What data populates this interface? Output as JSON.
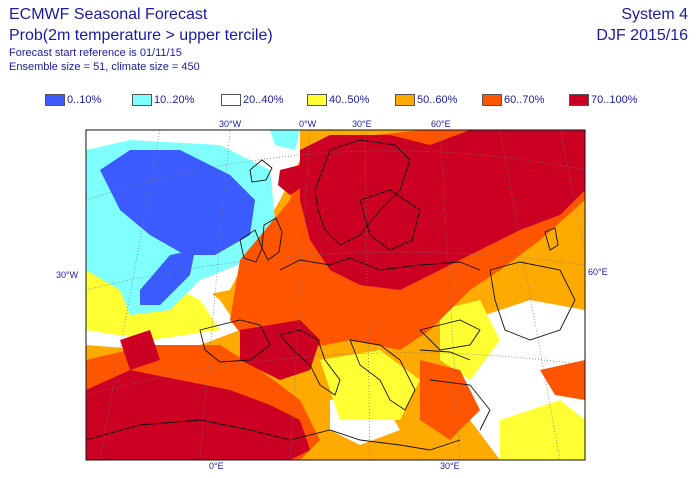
{
  "header": {
    "title": "ECMWF Seasonal Forecast",
    "subtitle": "Prob(2m temperature > upper tercile)",
    "start_ref": "Forecast start reference is 01/11/15",
    "ensemble": "Ensemble size = 51, climate size = 450",
    "system": "System 4",
    "season": "DJF 2015/16"
  },
  "legend": [
    {
      "label": "0..10%",
      "color": "#3b5bff"
    },
    {
      "label": "10..20%",
      "color": "#80ffff"
    },
    {
      "label": "20..40%",
      "color": "#ffffff"
    },
    {
      "label": "40..50%",
      "color": "#ffff33"
    },
    {
      "label": "50..60%",
      "color": "#ffaa00"
    },
    {
      "label": "60..70%",
      "color": "#ff5500"
    },
    {
      "label": "70..100%",
      "color": "#cc0022"
    }
  ],
  "map": {
    "top_ticks": [
      "30°W",
      "0°W",
      "30°E",
      "60°E"
    ],
    "left_tick": "30°W",
    "right_tick": "60°E",
    "bottom_ticks": [
      "0°E",
      "30°E"
    ]
  }
}
